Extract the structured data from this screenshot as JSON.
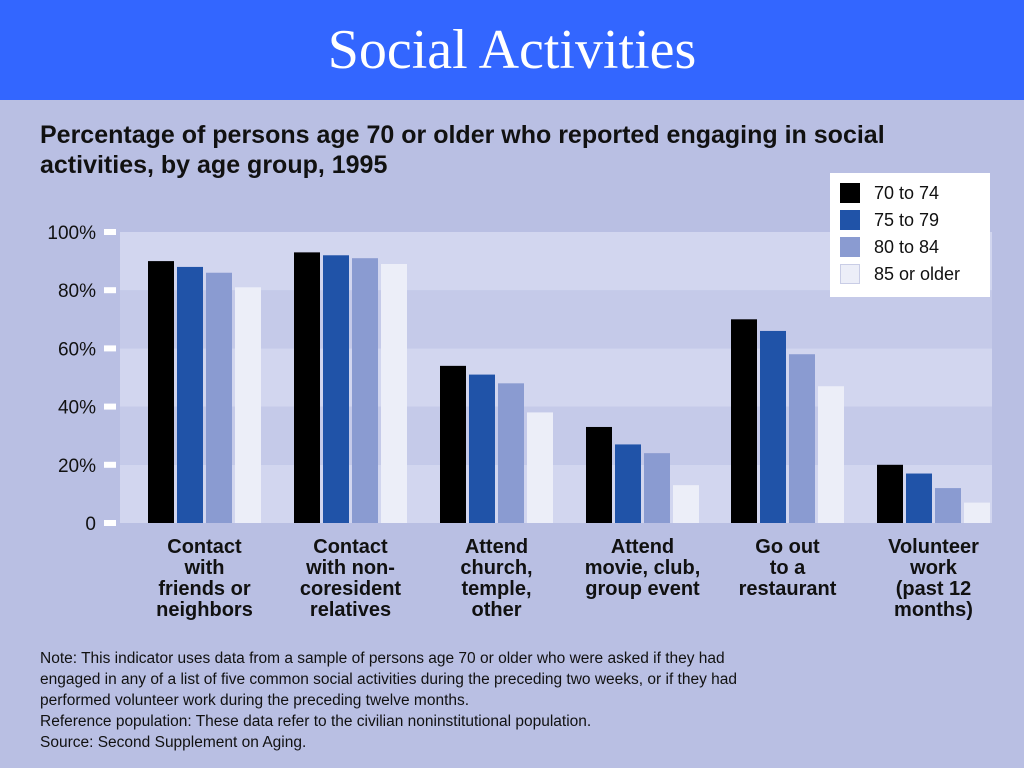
{
  "slide": {
    "title": "Social Activities"
  },
  "chart_data": {
    "type": "bar",
    "title": "Percentage of persons age 70 or older who reported engaging in social activities, by age group, 1995",
    "categories": [
      [
        "Contact",
        "with",
        "friends or",
        "neighbors"
      ],
      [
        "Contact",
        "with non-",
        "coresident",
        "relatives"
      ],
      [
        "Attend",
        "church,",
        "temple,",
        "other"
      ],
      [
        "Attend",
        "movie, club,",
        "group event"
      ],
      [
        "Go out",
        "to a",
        "restaurant"
      ],
      [
        "Volunteer",
        "work",
        "(past 12",
        "months)"
      ]
    ],
    "series": [
      {
        "name": "70 to 74",
        "color": "#000000",
        "values": [
          90,
          93,
          54,
          33,
          70,
          20
        ]
      },
      {
        "name": "75 to 79",
        "color": "#2053a8",
        "values": [
          88,
          92,
          51,
          27,
          66,
          17
        ]
      },
      {
        "name": "80 to 84",
        "color": "#8a9bd1",
        "values": [
          86,
          91,
          48,
          24,
          58,
          12
        ]
      },
      {
        "name": "85 or older",
        "color": "#eceef8",
        "values": [
          81,
          89,
          38,
          13,
          47,
          7
        ]
      }
    ],
    "yticks": [
      "0",
      "20%",
      "40%",
      "60%",
      "80%",
      "100%"
    ],
    "ylim": [
      0,
      100
    ],
    "legend_position": "top-right",
    "band_colors": [
      "#c5cae9",
      "#d2d6ef"
    ]
  },
  "notes": [
    "Note:  This indicator uses data from a sample of persons age 70 or older who were asked if they had",
    "engaged in any of a list of five common social activities during the preceding two weeks, or if they had",
    "performed volunteer work during the preceding twelve months.",
    "Reference population: These data refer to the civilian noninstitutional population.",
    "Source: Second Supplement on Aging."
  ]
}
